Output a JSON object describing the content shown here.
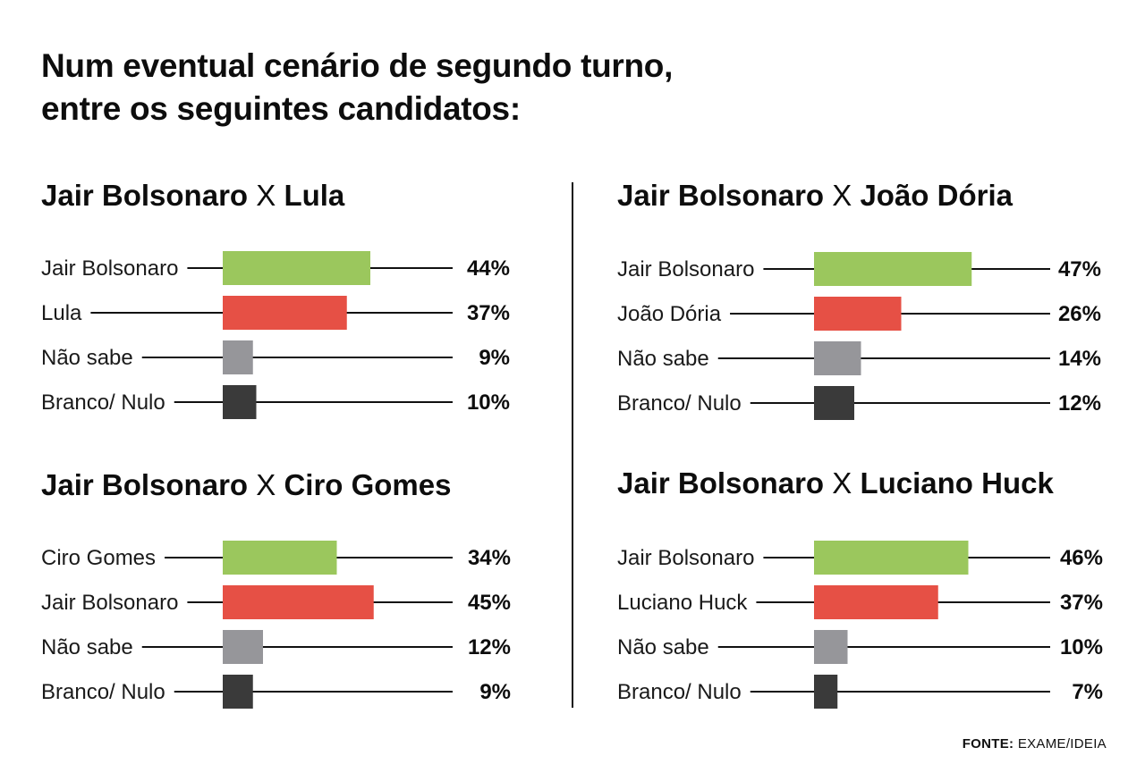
{
  "headline": {
    "line1_prefix": "Num eventual cenário de ",
    "line1_bold": "segundo turno,",
    "line2": "entre os seguintes candidatos:"
  },
  "colors": {
    "green": "#9bc75d",
    "red": "#e65045",
    "gray": "#96969a",
    "dark": "#3a3a3a"
  },
  "chart_data": [
    {
      "type": "bar",
      "title": "Jair Bolsonaro X Lula",
      "title_parts": [
        "Jair Bolsonaro",
        "X",
        "Lula"
      ],
      "categories": [
        "Jair Bolsonaro",
        "Lula",
        "Não sabe",
        "Branco/ Nulo"
      ],
      "values": [
        44,
        37,
        9,
        10
      ],
      "value_labels": [
        "44%",
        "37%",
        "9%",
        "10%"
      ],
      "bar_colors": [
        "green",
        "red",
        "gray",
        "dark"
      ]
    },
    {
      "type": "bar",
      "title": "Jair Bolsonaro X João Dória",
      "title_parts": [
        "Jair Bolsonaro",
        "X",
        "João Dória"
      ],
      "categories": [
        "Jair Bolsonaro",
        "João Dória",
        "Não sabe",
        "Branco/ Nulo"
      ],
      "values": [
        47,
        26,
        14,
        12
      ],
      "value_labels": [
        "47%",
        "26%",
        "14%",
        "12%"
      ],
      "bar_colors": [
        "green",
        "red",
        "gray",
        "dark"
      ]
    },
    {
      "type": "bar",
      "title": "Jair Bolsonaro X Ciro Gomes",
      "title_parts": [
        "Jair Bolsonaro",
        "X",
        "Ciro Gomes"
      ],
      "categories": [
        "Ciro Gomes",
        "Jair Bolsonaro",
        "Não sabe",
        "Branco/ Nulo"
      ],
      "values": [
        34,
        45,
        12,
        9
      ],
      "value_labels": [
        "34%",
        "45%",
        "12%",
        "9%"
      ],
      "bar_colors": [
        "green",
        "red",
        "gray",
        "dark"
      ]
    },
    {
      "type": "bar",
      "title": "Jair Bolsonaro X Luciano Huck",
      "title_parts": [
        "Jair Bolsonaro",
        "X",
        "Luciano Huck"
      ],
      "categories": [
        "Jair Bolsonaro",
        "Luciano Huck",
        "Não sabe",
        "Branco/ Nulo"
      ],
      "values": [
        46,
        37,
        10,
        7
      ],
      "value_labels": [
        "46%",
        "37%",
        "10%",
        "7%"
      ],
      "bar_colors": [
        "green",
        "red",
        "gray",
        "dark"
      ]
    }
  ],
  "source": {
    "label": "FONTE:",
    "text": " EXAME/IDEIA"
  }
}
